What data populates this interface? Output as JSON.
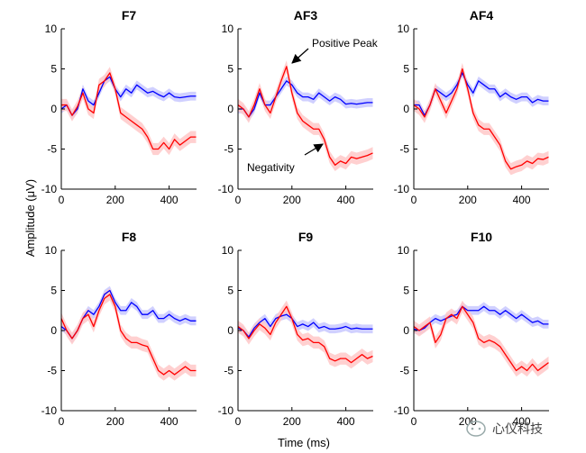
{
  "chart_data": {
    "type": "line",
    "ylabel": "Amplitude (μV)",
    "xlabel": "Time (ms)",
    "xlim": [
      0,
      500
    ],
    "ylim": [
      -10,
      10
    ],
    "xticks": [
      "0",
      "200",
      "400"
    ],
    "yticks": [
      "10",
      "5",
      "0",
      "-5",
      "-10"
    ],
    "colors": {
      "red": "#ff0000",
      "blue": "#0000ff",
      "red_band": "#ffc8c8",
      "blue_band": "#c8c8ff"
    },
    "panels": [
      {
        "title": "F7",
        "series": [
          {
            "name": "red",
            "x": [
              0,
              20,
              40,
              60,
              80,
              100,
              120,
              140,
              160,
              180,
              200,
              220,
              240,
              260,
              280,
              300,
              320,
              340,
              360,
              380,
              400,
              420,
              440,
              460,
              480,
              500
            ],
            "values": [
              0.5,
              0.5,
              -0.8,
              0.3,
              2.0,
              0.0,
              -0.5,
              3.0,
              3.5,
              4.5,
              2.5,
              -0.5,
              -1.0,
              -1.5,
              -2.0,
              -2.5,
              -3.5,
              -5.0,
              -5.0,
              -4.2,
              -5.0,
              -3.8,
              -4.5,
              -4.0,
              -3.5,
              -3.5
            ]
          },
          {
            "name": "blue",
            "x": [
              0,
              20,
              40,
              60,
              80,
              100,
              120,
              140,
              160,
              180,
              200,
              220,
              240,
              260,
              280,
              300,
              320,
              340,
              360,
              380,
              400,
              420,
              440,
              460,
              480,
              500
            ],
            "values": [
              0.0,
              0.5,
              -0.8,
              0.0,
              2.5,
              1.0,
              0.5,
              2.0,
              3.5,
              4.0,
              2.5,
              1.5,
              2.5,
              2.0,
              3.0,
              2.5,
              2.0,
              2.2,
              1.8,
              1.5,
              2.0,
              1.5,
              1.4,
              1.5,
              1.6,
              1.6
            ]
          }
        ]
      },
      {
        "title": "AF3",
        "series": [
          {
            "name": "red",
            "x": [
              0,
              20,
              40,
              60,
              80,
              100,
              120,
              140,
              160,
              180,
              200,
              220,
              240,
              260,
              280,
              300,
              320,
              340,
              360,
              380,
              400,
              420,
              440,
              460,
              480,
              500
            ],
            "values": [
              0.5,
              0.0,
              -1.0,
              0.5,
              2.5,
              0.5,
              -0.5,
              1.5,
              3.5,
              5.3,
              2.0,
              -0.5,
              -1.5,
              -2.0,
              -2.5,
              -2.5,
              -3.8,
              -6.0,
              -7.0,
              -6.5,
              -6.8,
              -6.0,
              -6.2,
              -6.0,
              -5.8,
              -5.5
            ]
          },
          {
            "name": "blue",
            "x": [
              0,
              20,
              40,
              60,
              80,
              100,
              120,
              140,
              160,
              180,
              200,
              220,
              240,
              260,
              280,
              300,
              320,
              340,
              360,
              380,
              400,
              420,
              440,
              460,
              480,
              500
            ],
            "values": [
              0.0,
              0.0,
              -1.0,
              0.0,
              2.0,
              0.5,
              0.5,
              1.5,
              2.5,
              3.5,
              3.0,
              2.0,
              1.5,
              1.5,
              1.2,
              2.0,
              1.5,
              1.0,
              1.5,
              1.2,
              0.6,
              0.7,
              0.6,
              0.7,
              0.8,
              0.8
            ]
          }
        ]
      },
      {
        "title": "AF4",
        "series": [
          {
            "name": "red",
            "x": [
              0,
              20,
              40,
              60,
              80,
              100,
              120,
              140,
              160,
              180,
              200,
              220,
              240,
              260,
              280,
              300,
              320,
              340,
              360,
              380,
              400,
              420,
              440,
              460,
              480,
              500
            ],
            "values": [
              0.5,
              0.0,
              -1.0,
              0.5,
              2.5,
              1.0,
              -0.5,
              1.0,
              2.5,
              5.0,
              2.5,
              -0.5,
              -2.0,
              -2.5,
              -2.5,
              -3.5,
              -4.5,
              -6.5,
              -7.5,
              -7.2,
              -7.0,
              -6.5,
              -6.8,
              -6.2,
              -6.3,
              -6.0
            ]
          },
          {
            "name": "blue",
            "x": [
              0,
              20,
              40,
              60,
              80,
              100,
              120,
              140,
              160,
              180,
              200,
              220,
              240,
              260,
              280,
              300,
              320,
              340,
              360,
              380,
              400,
              420,
              440,
              460,
              480,
              500
            ],
            "values": [
              0.5,
              0.5,
              -0.8,
              0.5,
              2.5,
              2.0,
              1.5,
              2.0,
              3.0,
              4.5,
              3.0,
              2.0,
              3.5,
              3.0,
              2.5,
              2.5,
              1.5,
              2.0,
              1.5,
              1.2,
              1.5,
              1.5,
              0.8,
              1.2,
              1.0,
              1.0
            ]
          }
        ]
      },
      {
        "title": "F8",
        "series": [
          {
            "name": "red",
            "x": [
              0,
              20,
              40,
              60,
              80,
              100,
              120,
              140,
              160,
              180,
              200,
              220,
              240,
              260,
              280,
              300,
              320,
              340,
              360,
              380,
              400,
              420,
              440,
              460,
              480,
              500
            ],
            "values": [
              1.5,
              0.0,
              -1.0,
              0.0,
              1.5,
              2.0,
              0.5,
              2.5,
              4.0,
              4.5,
              3.0,
              0.0,
              -1.0,
              -1.5,
              -1.5,
              -1.8,
              -2.0,
              -3.5,
              -5.0,
              -5.5,
              -5.0,
              -5.5,
              -5.0,
              -4.5,
              -5.0,
              -5.0
            ]
          },
          {
            "name": "blue",
            "x": [
              0,
              20,
              40,
              60,
              80,
              100,
              120,
              140,
              160,
              180,
              200,
              220,
              240,
              260,
              280,
              300,
              320,
              340,
              360,
              380,
              400,
              420,
              440,
              460,
              480,
              500
            ],
            "values": [
              0.5,
              0.0,
              -1.0,
              0.0,
              1.5,
              2.5,
              2.0,
              3.0,
              4.5,
              5.0,
              3.5,
              2.5,
              2.5,
              3.5,
              3.0,
              2.0,
              2.0,
              2.5,
              1.5,
              1.5,
              2.0,
              1.5,
              1.2,
              1.5,
              1.2,
              1.2
            ]
          }
        ]
      },
      {
        "title": "F9",
        "series": [
          {
            "name": "red",
            "x": [
              0,
              20,
              40,
              60,
              80,
              100,
              120,
              140,
              160,
              180,
              200,
              220,
              240,
              260,
              280,
              300,
              320,
              340,
              360,
              380,
              400,
              420,
              440,
              460,
              480,
              500
            ],
            "values": [
              0.5,
              0.0,
              -1.0,
              0.0,
              0.8,
              0.3,
              -0.5,
              1.0,
              2.0,
              3.0,
              1.5,
              -0.5,
              -1.2,
              -1.0,
              -1.5,
              -1.5,
              -2.0,
              -3.5,
              -3.8,
              -3.5,
              -3.5,
              -4.0,
              -3.5,
              -3.0,
              -3.5,
              -3.2
            ]
          },
          {
            "name": "blue",
            "x": [
              0,
              20,
              40,
              60,
              80,
              100,
              120,
              140,
              160,
              180,
              200,
              220,
              240,
              260,
              280,
              300,
              320,
              340,
              360,
              380,
              400,
              420,
              440,
              460,
              480,
              500
            ],
            "values": [
              0.3,
              0.0,
              -0.8,
              0.3,
              1.0,
              1.5,
              0.5,
              1.5,
              1.8,
              2.0,
              1.5,
              0.5,
              0.8,
              0.5,
              1.0,
              0.3,
              0.5,
              0.2,
              0.2,
              0.3,
              0.5,
              0.2,
              0.3,
              0.2,
              0.2,
              0.2
            ]
          }
        ]
      },
      {
        "title": "F10",
        "series": [
          {
            "name": "red",
            "x": [
              0,
              20,
              40,
              60,
              80,
              100,
              120,
              140,
              160,
              180,
              200,
              220,
              240,
              260,
              280,
              300,
              320,
              340,
              360,
              380,
              400,
              420,
              440,
              460,
              480,
              500
            ],
            "values": [
              0.5,
              0.0,
              0.5,
              1.0,
              -1.5,
              -0.5,
              1.5,
              2.0,
              1.5,
              3.0,
              2.0,
              1.0,
              -1.0,
              -1.5,
              -1.2,
              -1.5,
              -2.0,
              -3.0,
              -4.0,
              -5.0,
              -4.5,
              -5.0,
              -4.2,
              -5.0,
              -4.5,
              -4.0
            ]
          },
          {
            "name": "blue",
            "x": [
              0,
              20,
              40,
              60,
              80,
              100,
              120,
              140,
              160,
              180,
              200,
              220,
              240,
              260,
              280,
              300,
              320,
              340,
              360,
              380,
              400,
              420,
              440,
              460,
              480,
              500
            ],
            "values": [
              0.2,
              0.0,
              0.3,
              1.0,
              1.5,
              1.2,
              1.5,
              1.8,
              2.0,
              3.0,
              2.5,
              2.5,
              2.5,
              3.0,
              2.5,
              2.5,
              2.0,
              2.5,
              2.0,
              1.5,
              2.0,
              1.5,
              1.0,
              1.2,
              0.8,
              0.8
            ]
          }
        ]
      }
    ],
    "annotations": [
      {
        "text": "Positive Peak",
        "panel": 1,
        "points_to": [
          195,
          5.3
        ]
      },
      {
        "text": "Negativity",
        "panel": 1,
        "points_to": [
          345,
          -3.6
        ]
      }
    ]
  },
  "watermark": {
    "text": "心仪科技",
    "icon": "chat-bubble-icon"
  }
}
